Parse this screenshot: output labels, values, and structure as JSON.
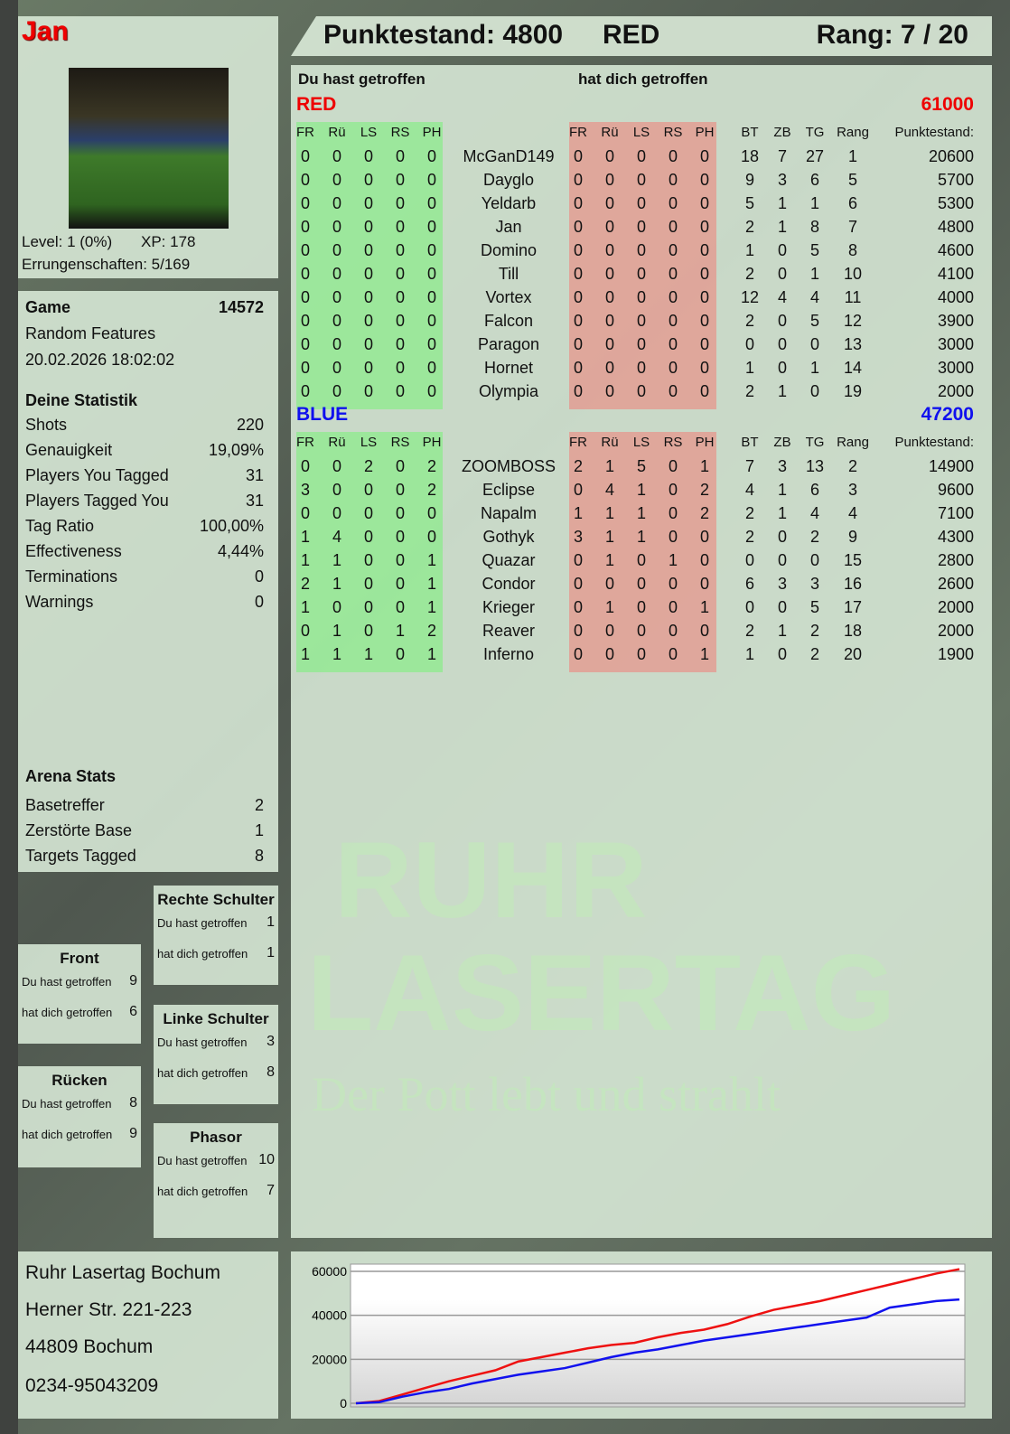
{
  "player": {
    "name": "Jan",
    "level": "Level: 1 (0%)",
    "xp": "XP: 178",
    "achievements": "Errungenschaften: 5/169"
  },
  "header": {
    "score": "Punktestand: 4800",
    "team": "RED",
    "rank": "Rang: 7 / 20"
  },
  "table": {
    "you_hit_label": "Du hast getroffen",
    "hit_you_label": "hat dich getroffen",
    "zone_cols": [
      "FR",
      "Rü",
      "LS",
      "RS",
      "PH"
    ],
    "stat_cols": [
      "BT",
      "ZB",
      "TG",
      "Rang"
    ],
    "score_col": "Punktestand:",
    "teams": [
      {
        "name": "RED",
        "total": "61000",
        "color": "#ee0000",
        "players": [
          [
            "McGanD149",
            [
              0,
              0,
              0,
              0,
              0
            ],
            [
              0,
              0,
              0,
              0,
              0
            ],
            [
              18,
              7,
              27,
              1
            ],
            20600
          ],
          [
            "Dayglo",
            [
              0,
              0,
              0,
              0,
              0
            ],
            [
              0,
              0,
              0,
              0,
              0
            ],
            [
              9,
              3,
              6,
              5
            ],
            5700
          ],
          [
            "Yeldarb",
            [
              0,
              0,
              0,
              0,
              0
            ],
            [
              0,
              0,
              0,
              0,
              0
            ],
            [
              5,
              1,
              1,
              6
            ],
            5300
          ],
          [
            "Jan",
            [
              0,
              0,
              0,
              0,
              0
            ],
            [
              0,
              0,
              0,
              0,
              0
            ],
            [
              2,
              1,
              8,
              7
            ],
            4800
          ],
          [
            "Domino",
            [
              0,
              0,
              0,
              0,
              0
            ],
            [
              0,
              0,
              0,
              0,
              0
            ],
            [
              1,
              0,
              5,
              8
            ],
            4600
          ],
          [
            "Till",
            [
              0,
              0,
              0,
              0,
              0
            ],
            [
              0,
              0,
              0,
              0,
              0
            ],
            [
              2,
              0,
              1,
              10
            ],
            4100
          ],
          [
            "Vortex",
            [
              0,
              0,
              0,
              0,
              0
            ],
            [
              0,
              0,
              0,
              0,
              0
            ],
            [
              12,
              4,
              4,
              11
            ],
            4000
          ],
          [
            "Falcon",
            [
              0,
              0,
              0,
              0,
              0
            ],
            [
              0,
              0,
              0,
              0,
              0
            ],
            [
              2,
              0,
              5,
              12
            ],
            3900
          ],
          [
            "Paragon",
            [
              0,
              0,
              0,
              0,
              0
            ],
            [
              0,
              0,
              0,
              0,
              0
            ],
            [
              0,
              0,
              0,
              13
            ],
            3000
          ],
          [
            "Hornet",
            [
              0,
              0,
              0,
              0,
              0
            ],
            [
              0,
              0,
              0,
              0,
              0
            ],
            [
              1,
              0,
              1,
              14
            ],
            3000
          ],
          [
            "Olympia",
            [
              0,
              0,
              0,
              0,
              0
            ],
            [
              0,
              0,
              0,
              0,
              0
            ],
            [
              2,
              1,
              0,
              19
            ],
            2000
          ]
        ]
      },
      {
        "name": "BLUE",
        "total": "47200",
        "color": "#1010ee",
        "players": [
          [
            "ZOOMBOSS",
            [
              0,
              0,
              2,
              0,
              2
            ],
            [
              2,
              1,
              5,
              0,
              1
            ],
            [
              7,
              3,
              13,
              2
            ],
            14900
          ],
          [
            "Eclipse",
            [
              3,
              0,
              0,
              0,
              2
            ],
            [
              0,
              4,
              1,
              0,
              2
            ],
            [
              4,
              1,
              6,
              3
            ],
            9600
          ],
          [
            "Napalm",
            [
              0,
              0,
              0,
              0,
              0
            ],
            [
              1,
              1,
              1,
              0,
              2
            ],
            [
              2,
              1,
              4,
              4
            ],
            7100
          ],
          [
            "Gothyk",
            [
              1,
              4,
              0,
              0,
              0
            ],
            [
              3,
              1,
              1,
              0,
              0
            ],
            [
              2,
              0,
              2,
              9
            ],
            4300
          ],
          [
            "Quazar",
            [
              1,
              1,
              0,
              0,
              1
            ],
            [
              0,
              1,
              0,
              1,
              0
            ],
            [
              0,
              0,
              0,
              15
            ],
            2800
          ],
          [
            "Condor",
            [
              2,
              1,
              0,
              0,
              1
            ],
            [
              0,
              0,
              0,
              0,
              0
            ],
            [
              6,
              3,
              3,
              16
            ],
            2600
          ],
          [
            "Krieger",
            [
              1,
              0,
              0,
              0,
              1
            ],
            [
              0,
              1,
              0,
              0,
              1
            ],
            [
              0,
              0,
              5,
              17
            ],
            2000
          ],
          [
            "Reaver",
            [
              0,
              1,
              0,
              1,
              2
            ],
            [
              0,
              0,
              0,
              0,
              0
            ],
            [
              2,
              1,
              2,
              18
            ],
            2000
          ],
          [
            "Inferno",
            [
              1,
              1,
              1,
              0,
              1
            ],
            [
              0,
              0,
              0,
              0,
              1
            ],
            [
              1,
              0,
              2,
              20
            ],
            1900
          ]
        ]
      }
    ]
  },
  "game": {
    "label": "Game",
    "id": "14572",
    "mode": "Random Features",
    "date": "20.02.2026 18:02:02"
  },
  "stats": {
    "title": "Deine Statistik",
    "items": [
      [
        "Shots",
        "220"
      ],
      [
        "Genauigkeit",
        "19,09%"
      ],
      [
        "Players You Tagged",
        "31"
      ],
      [
        "Players Tagged You",
        "31"
      ],
      [
        "Tag Ratio",
        "100,00%"
      ],
      [
        "Effectiveness",
        "4,44%"
      ],
      [
        "Terminations",
        "0"
      ],
      [
        "Warnings",
        "0"
      ]
    ]
  },
  "arena": {
    "title": "Arena Stats",
    "items": [
      [
        "Basetreffer",
        "2"
      ],
      [
        "Zerstörte Base",
        "1"
      ],
      [
        "Targets Tagged",
        "8"
      ]
    ]
  },
  "zones": [
    {
      "title": "Front",
      "you_hit": "9",
      "hit_you": "6"
    },
    {
      "title": "Rücken",
      "you_hit": "8",
      "hit_you": "9"
    },
    {
      "title": "Rechte Schulter",
      "you_hit": "1",
      "hit_you": "1"
    },
    {
      "title": "Linke Schulter",
      "you_hit": "3",
      "hit_you": "8"
    },
    {
      "title": "Phasor",
      "you_hit": "10",
      "hit_you": "7"
    }
  ],
  "zone_labels": {
    "you_hit": "Du hast getroffen",
    "hit_you": "hat dich getroffen"
  },
  "address": [
    "Ruhr Lasertag Bochum",
    "Herner Str. 221-223",
    "44809 Bochum",
    "0234-95043209"
  ],
  "watermark": {
    "line1": "RUHR",
    "line2": "LASERTAG",
    "slogan": "Der Pott lebt und strahlt"
  },
  "chart_data": {
    "type": "line",
    "ylim": [
      0,
      60000
    ],
    "yticks": [
      "0",
      "20000",
      "40000",
      "60000"
    ],
    "grid": true,
    "series": [
      {
        "color": "#ee1111",
        "values": [
          0,
          1000,
          4000,
          7000,
          10000,
          12500,
          15000,
          19000,
          21000,
          23000,
          25000,
          26500,
          27500,
          30000,
          32000,
          33500,
          36000,
          39500,
          42500,
          44500,
          46500,
          49000,
          51500,
          54000,
          56500,
          59000,
          61000
        ]
      },
      {
        "color": "#1111ee",
        "values": [
          0,
          500,
          3000,
          5000,
          6500,
          9000,
          11000,
          13000,
          14500,
          16000,
          18500,
          21000,
          23000,
          24500,
          26500,
          28500,
          30000,
          31500,
          33000,
          34500,
          36000,
          37500,
          39000,
          43500,
          45000,
          46500,
          47200
        ]
      }
    ]
  }
}
